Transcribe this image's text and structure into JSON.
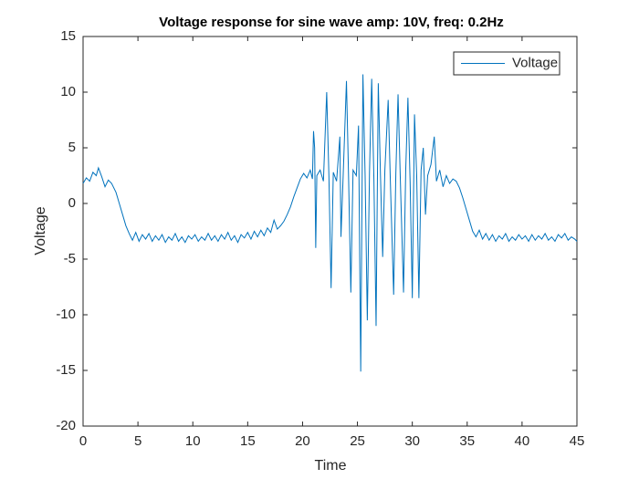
{
  "chart_data": {
    "type": "line",
    "title": "Voltage response for sine wave amp: 10V, freq: 0.2Hz",
    "x_label": "Time",
    "y_label": "Voltage",
    "xlim": [
      0,
      45
    ],
    "xticks": [
      0,
      5,
      10,
      15,
      20,
      25,
      30,
      35,
      40,
      45
    ],
    "ylim": [
      -20,
      15
    ],
    "yticks": [
      -20,
      -15,
      -10,
      -5,
      0,
      5,
      10,
      15
    ],
    "legend_position": "top-right",
    "box": true,
    "x": [
      0,
      0.3,
      0.6,
      0.9,
      1.2,
      1.4,
      1.7,
      2.0,
      2.3,
      2.6,
      3.0,
      3.3,
      3.6,
      3.9,
      4.2,
      4.5,
      4.8,
      5.1,
      5.4,
      5.7,
      6.0,
      6.3,
      6.6,
      6.9,
      7.2,
      7.5,
      7.8,
      8.1,
      8.4,
      8.7,
      9.0,
      9.3,
      9.6,
      9.9,
      10.2,
      10.5,
      10.8,
      11.1,
      11.4,
      11.7,
      12.0,
      12.3,
      12.6,
      12.9,
      13.2,
      13.5,
      13.8,
      14.1,
      14.4,
      14.7,
      15.0,
      15.3,
      15.6,
      15.9,
      16.2,
      16.5,
      16.8,
      17.1,
      17.4,
      17.7,
      18.0,
      18.3,
      18.6,
      18.9,
      19.2,
      19.5,
      19.8,
      20.1,
      20.4,
      20.7,
      20.9,
      21.0,
      21.1,
      21.2,
      21.3,
      21.6,
      21.9,
      22.2,
      22.4,
      22.6,
      22.8,
      23.1,
      23.4,
      23.5,
      23.7,
      24.0,
      24.2,
      24.4,
      24.6,
      24.9,
      25.1,
      25.3,
      25.5,
      25.7,
      25.9,
      26.1,
      26.3,
      26.5,
      26.7,
      26.9,
      27.1,
      27.3,
      27.5,
      27.8,
      28.0,
      28.3,
      28.5,
      28.7,
      28.9,
      29.2,
      29.4,
      29.6,
      29.8,
      30.0,
      30.2,
      30.4,
      30.6,
      30.8,
      31.0,
      31.2,
      31.4,
      31.7,
      32.0,
      32.2,
      32.5,
      32.8,
      33.1,
      33.4,
      33.7,
      34.0,
      34.3,
      34.6,
      34.9,
      35.2,
      35.5,
      35.8,
      36.1,
      36.4,
      36.7,
      37.0,
      37.3,
      37.6,
      37.9,
      38.2,
      38.5,
      38.8,
      39.1,
      39.4,
      39.7,
      40.0,
      40.3,
      40.6,
      40.9,
      41.2,
      41.5,
      41.8,
      42.1,
      42.4,
      42.7,
      43.0,
      43.3,
      43.6,
      43.9,
      44.2,
      44.5,
      44.8,
      45.0
    ],
    "series": [
      {
        "name": "Voltage",
        "color": "#0072bd",
        "values": [
          1.8,
          2.3,
          2.0,
          2.8,
          2.5,
          3.2,
          2.4,
          1.5,
          2.1,
          1.8,
          1.0,
          0.0,
          -1.0,
          -2.0,
          -2.7,
          -3.3,
          -2.6,
          -3.4,
          -2.8,
          -3.2,
          -2.7,
          -3.4,
          -2.9,
          -3.3,
          -2.8,
          -3.5,
          -3.0,
          -3.3,
          -2.7,
          -3.4,
          -3.0,
          -3.5,
          -2.9,
          -3.2,
          -2.8,
          -3.4,
          -3.0,
          -3.3,
          -2.7,
          -3.3,
          -2.9,
          -3.4,
          -2.8,
          -3.2,
          -2.6,
          -3.3,
          -2.9,
          -3.5,
          -2.8,
          -3.1,
          -2.6,
          -3.2,
          -2.5,
          -3.0,
          -2.4,
          -2.9,
          -2.2,
          -2.6,
          -1.5,
          -2.3,
          -2.0,
          -1.6,
          -1.0,
          -0.3,
          0.6,
          1.4,
          2.2,
          2.7,
          2.3,
          3.0,
          2.2,
          6.5,
          5.0,
          -4.0,
          2.5,
          3.0,
          2.0,
          10.0,
          2.5,
          -7.6,
          2.8,
          2.0,
          6.0,
          -3.0,
          2.5,
          11.0,
          2.0,
          -8.0,
          3.0,
          2.5,
          7.0,
          -15.1,
          11.6,
          2.5,
          -10.5,
          2.8,
          11.2,
          2.2,
          -11.0,
          10.8,
          2.5,
          -4.8,
          3.0,
          9.3,
          2.0,
          -8.2,
          2.7,
          9.8,
          2.5,
          -8.0,
          3.0,
          9.5,
          2.0,
          -8.5,
          8.0,
          2.5,
          -8.5,
          3.0,
          5.0,
          -1.0,
          2.5,
          3.5,
          6.0,
          2.0,
          3.0,
          1.5,
          2.5,
          1.8,
          2.2,
          2.0,
          1.4,
          0.5,
          -0.5,
          -1.5,
          -2.5,
          -3.0,
          -2.4,
          -3.2,
          -2.7,
          -3.3,
          -2.8,
          -3.4,
          -2.9,
          -3.2,
          -2.7,
          -3.4,
          -3.0,
          -3.3,
          -2.8,
          -3.2,
          -2.9,
          -3.4,
          -2.8,
          -3.3,
          -2.9,
          -3.2,
          -2.7,
          -3.3,
          -3.0,
          -3.4,
          -2.8,
          -3.1,
          -2.7,
          -3.3,
          -3.0,
          -3.2,
          -3.4
        ]
      }
    ]
  }
}
